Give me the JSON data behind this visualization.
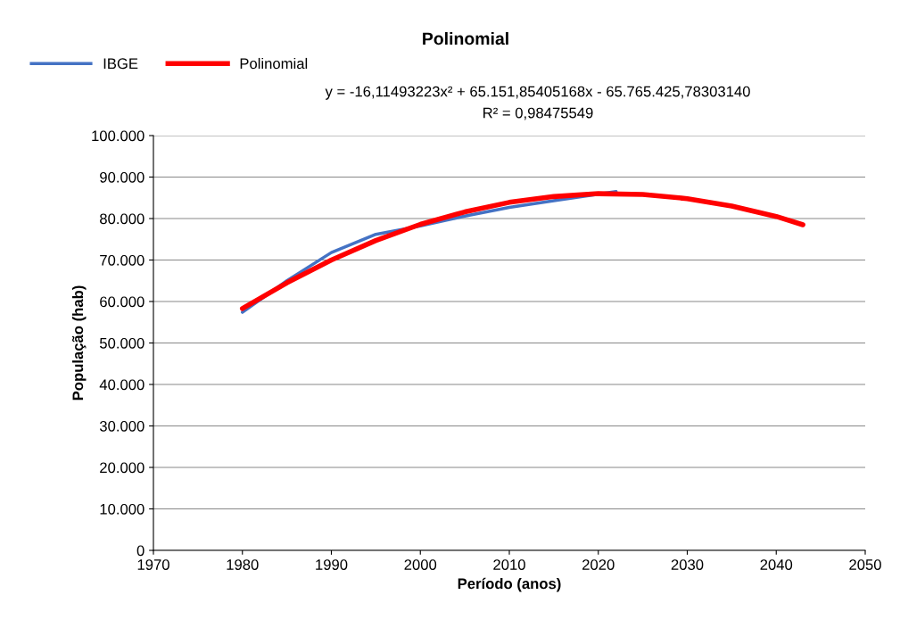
{
  "chart_data": {
    "type": "line",
    "title": "Polinomial",
    "xlabel": "Período (anos)",
    "ylabel": "População (hab)",
    "annotations": [
      "y = -16,11493223x² + 65.151,85405168x - 65.765.425,78303140",
      "R² = 0,98475549"
    ],
    "series": [
      {
        "name": "IBGE",
        "color": "#4472c4",
        "x": [
          1980,
          1985,
          1990,
          1995,
          2000,
          2005,
          2010,
          2015,
          2022
        ],
        "values": [
          57400,
          65000,
          71800,
          76200,
          78200,
          80600,
          82700,
          84300,
          86500
        ]
      },
      {
        "name": "Polinomial",
        "color": "#ff0000",
        "x": [
          1980,
          1985,
          1990,
          1995,
          2000,
          2005,
          2010,
          2015,
          2020,
          2025,
          2030,
          2035,
          2040,
          2043
        ],
        "values": [
          58300,
          64500,
          70000,
          74700,
          78600,
          81600,
          83900,
          85300,
          86000,
          85800,
          84800,
          83000,
          80500,
          78500
        ]
      }
    ],
    "xlim": [
      1970,
      2050
    ],
    "xticks": [
      1970,
      1980,
      1990,
      2000,
      2010,
      2020,
      2030,
      2040,
      2050
    ],
    "ylim": [
      0,
      100000
    ],
    "yticks": [
      0,
      {
        "value": 10000,
        "label": "10.000"
      },
      {
        "value": 20000,
        "label": "20.000"
      },
      {
        "value": 30000,
        "label": "30.000"
      },
      {
        "value": 40000,
        "label": "40.000"
      },
      {
        "value": 50000,
        "label": "50.000"
      },
      {
        "value": 60000,
        "label": "60.000"
      },
      {
        "value": 70000,
        "label": "70.000"
      },
      {
        "value": 80000,
        "label": "80.000"
      },
      {
        "value": 90000,
        "label": "90.000"
      },
      {
        "value": 100000,
        "label": "100.000"
      }
    ],
    "grid": "y",
    "legend": "top left",
    "marker": "none",
    "line_style": "solid"
  }
}
